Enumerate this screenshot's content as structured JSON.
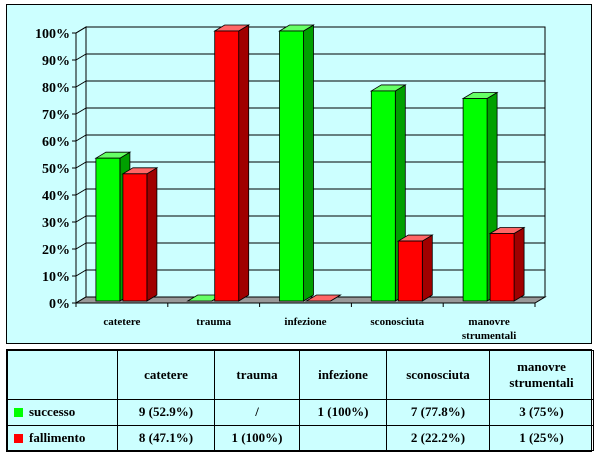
{
  "chart_data": {
    "type": "bar",
    "categories": [
      "catetere",
      "trauma",
      "infezione",
      "sconosciuta",
      "manovre strumentali"
    ],
    "category_lines": [
      [
        "catetere"
      ],
      [
        "trauma"
      ],
      [
        "infezione"
      ],
      [
        "sconosciuta"
      ],
      [
        "manovre",
        "strumentali"
      ]
    ],
    "series": [
      {
        "name": "successo",
        "color": "#00ff00",
        "side_color": "#00a000",
        "top_color": "#66ff66",
        "values": [
          52.9,
          0,
          100,
          77.8,
          75
        ]
      },
      {
        "name": "fallimento",
        "color": "#ff0000",
        "side_color": "#a00000",
        "top_color": "#ff6666",
        "values": [
          47.1,
          100,
          0,
          22.2,
          25
        ]
      }
    ],
    "ylim": [
      0,
      100
    ],
    "yticks": [
      "0%",
      "10%",
      "20%",
      "30%",
      "40%",
      "50%",
      "60%",
      "70%",
      "80%",
      "90%",
      "100%"
    ],
    "grid": true,
    "background": "#ccffff"
  },
  "table": {
    "headers": [
      "",
      "catetere",
      "trauma",
      "infezione",
      "sconosciuta",
      "manovre strumentali"
    ],
    "rows": [
      {
        "label": "successo",
        "color": "#00ff00",
        "cells": [
          "9 (52.9%)",
          "/",
          "1 (100%)",
          "7 (77.8%)",
          "3 (75%)"
        ]
      },
      {
        "label": "fallimento",
        "color": "#ff0000",
        "cells": [
          "8 (47.1%)",
          "1 (100%)",
          "",
          "2 (22.2%)",
          "1 (25%)"
        ]
      }
    ]
  }
}
